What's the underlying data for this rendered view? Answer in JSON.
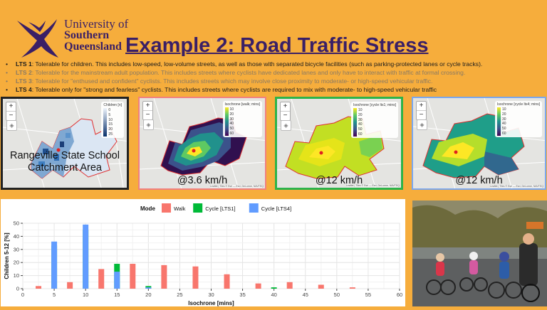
{
  "header": {
    "university_line1": "University of",
    "university_line2": "Southern",
    "university_line3": "Queensland",
    "title": "Example 2: Road Traffic Stress"
  },
  "lts": [
    {
      "label": "LTS 1",
      "text": ": Tolerable for children. This includes low-speed, low-volume streets, as well as those with separated bicycle facilities (such as parking-protected lanes or cycle tracks).",
      "style": "dark"
    },
    {
      "label": "LTS 2",
      "text": ": Tolerable for the mainstream adult population. This includes streets where cyclists have dedicated lanes and only have to interact with traffic at formal crossing.",
      "style": "dim"
    },
    {
      "label": "LTS 3",
      "text": ": Tolerable for \"enthused and confident\" cyclists. This includes streets which may involve close proximity to moderate- or high-speed vehicular traffic.",
      "style": "dim"
    },
    {
      "label": "LTS 4",
      "text": ": Tolerable only for \"strong and fearless\" cyclists. This includes streets where cyclists are required to mix with moderate- to high-speed vehicular traffic",
      "style": "dark"
    }
  ],
  "maps": [
    {
      "caption_line1": "Rangeville State School",
      "caption_line2": "Catchment Area",
      "legend_title": "Children [n]",
      "legend_ticks": [
        "0",
        "5",
        "10",
        "15",
        "20",
        "25"
      ],
      "border_color": "#222222"
    },
    {
      "caption_line1": "@3.6 km/h",
      "caption_line2": "",
      "legend_title": "Isochrone [walk; mins]",
      "legend_ticks": [
        "10",
        "20",
        "30",
        "40",
        "50",
        "60"
      ],
      "border_color": "#f08080"
    },
    {
      "caption_line1": "@12 km/h",
      "caption_line2": "",
      "legend_title": "Isochrone [cycle lts1; mins]",
      "legend_ticks": [
        "10",
        "20",
        "30",
        "40",
        "50",
        "60"
      ],
      "border_color": "#2db34a"
    },
    {
      "caption_line1": "@12 km/h",
      "caption_line2": "",
      "legend_title": "Isochrone [cycle lts4; mins]",
      "legend_ticks": [
        "10",
        "20",
        "30",
        "40",
        "50",
        "60"
      ],
      "border_color": "#7aa7ee"
    }
  ],
  "map_controls": {
    "zoom_in": "+",
    "zoom_out": "−",
    "attribution": "Leaflet | Tiles © Esri — Esri, DeLorme, NAVTEQ"
  },
  "chart_data": {
    "type": "bar",
    "legend_title": "Mode",
    "legend_position": "top",
    "xlabel": "Isochrone [mins]",
    "ylabel": "Children 5-12 [%]",
    "xlim": [
      0,
      60
    ],
    "ylim": [
      0,
      50
    ],
    "xticks": [
      0,
      5,
      10,
      15,
      20,
      25,
      30,
      35,
      40,
      45,
      50,
      55,
      60
    ],
    "yticks": [
      0,
      10,
      20,
      30,
      40,
      50
    ],
    "grid": true,
    "series": [
      {
        "name": "Walk",
        "color": "#f8766d",
        "x": [
          2.5,
          7.5,
          12.5,
          17.5,
          22.5,
          27.5,
          32.5,
          37.5,
          42.5,
          47.5,
          52.5
        ],
        "values": [
          2,
          5,
          15,
          19,
          18,
          17,
          11,
          4,
          5,
          3,
          1
        ]
      },
      {
        "name": "Cycle [LTS1]",
        "color": "#00ba38",
        "x": [
          5,
          10,
          15,
          20,
          40
        ],
        "values": [
          33,
          45,
          19,
          2,
          1
        ]
      },
      {
        "name": "Cycle [LTS4]",
        "color": "#619cff",
        "x": [
          5,
          10,
          15,
          20
        ],
        "values": [
          36,
          49,
          13,
          1
        ]
      }
    ]
  }
}
